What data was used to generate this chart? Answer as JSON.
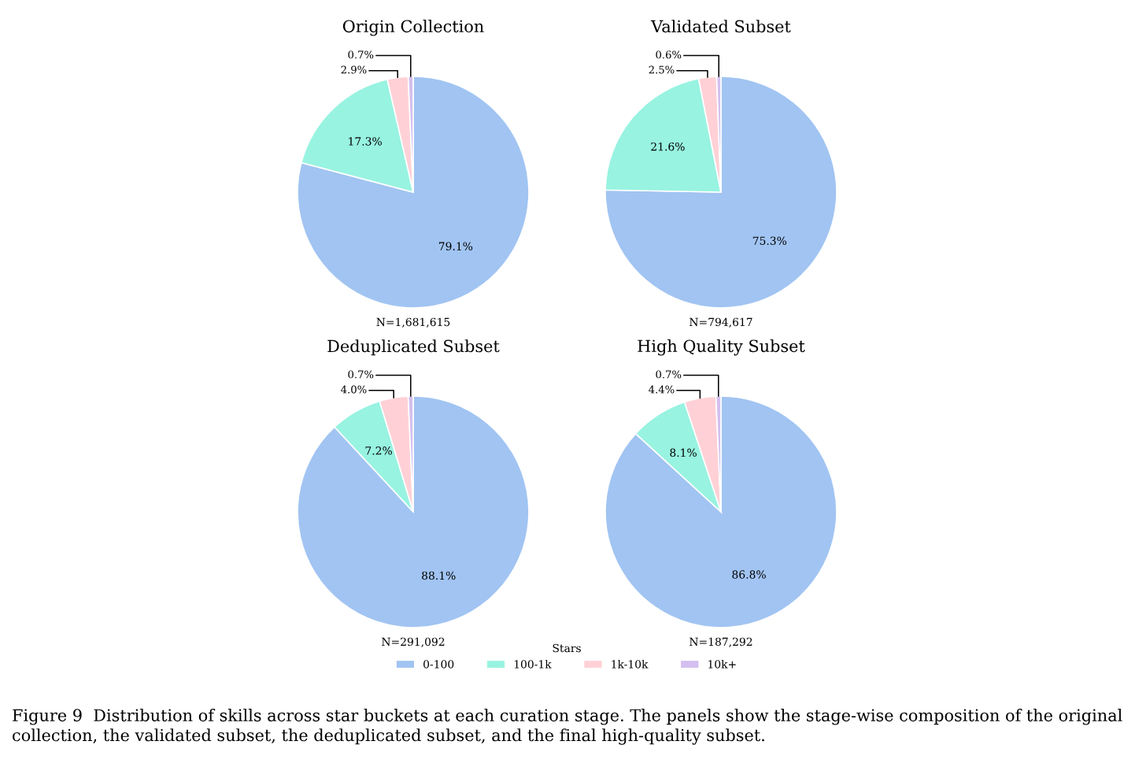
{
  "chart_data": [
    {
      "type": "pie",
      "title": "Origin Collection",
      "categories": [
        "0-100",
        "100-1k",
        "1k-10k",
        "10k+"
      ],
      "values": [
        79.1,
        17.3,
        2.9,
        0.7
      ],
      "value_labels": [
        "79.1%",
        "17.3%",
        "2.9%",
        "0.7%"
      ],
      "colors": [
        "#a1c4f2",
        "#98f3e1",
        "#ffd1d6",
        "#d4bff0"
      ],
      "legend": "bottom",
      "legend_title": "Stars",
      "annotations": [
        "N=1,681,615"
      ]
    },
    {
      "type": "pie",
      "title": "Validated Subset",
      "categories": [
        null,
        null,
        null,
        null
      ],
      "values": [
        75.3,
        21.6,
        2.5,
        0.6
      ],
      "value_labels": [
        "75.3%",
        "21.6%",
        "2.5%",
        "0.6%"
      ],
      "colors": [
        "#a1c4f2",
        "#98f3e1",
        "#ffd1d6",
        "#d4bff0"
      ],
      "annotations": [
        "N=794,617"
      ]
    },
    {
      "type": "pie",
      "title": "Deduplicated Subset",
      "categories": [
        null,
        null,
        null,
        null
      ],
      "values": [
        88.1,
        7.2,
        4.0,
        0.7
      ],
      "value_labels": [
        "88.1%",
        "7.2%",
        "4.0%",
        "0.7%"
      ],
      "colors": [
        "#a1c4f2",
        "#98f3e1",
        "#ffd1d6",
        "#d4bff0"
      ],
      "annotations": [
        "N=291,092"
      ]
    },
    {
      "type": "pie",
      "title": "High Quality Subset",
      "categories": [
        null,
        null,
        null,
        null
      ],
      "values": [
        86.8,
        8.1,
        4.4,
        0.7
      ],
      "value_labels": [
        "86.8%",
        "8.1%",
        "4.4%",
        "0.7%"
      ],
      "colors": [
        "#a1c4f2",
        "#98f3e1",
        "#ffd1d6",
        "#d4bff0"
      ],
      "annotations": [
        "N=187,292",
        "Figure 9  Distribution of skills across star buckets at each curation stage. The panels show the stage-wise composition of the original collection, the validated subset, the deduplicated subset, and the final high-quality subset."
      ]
    }
  ]
}
